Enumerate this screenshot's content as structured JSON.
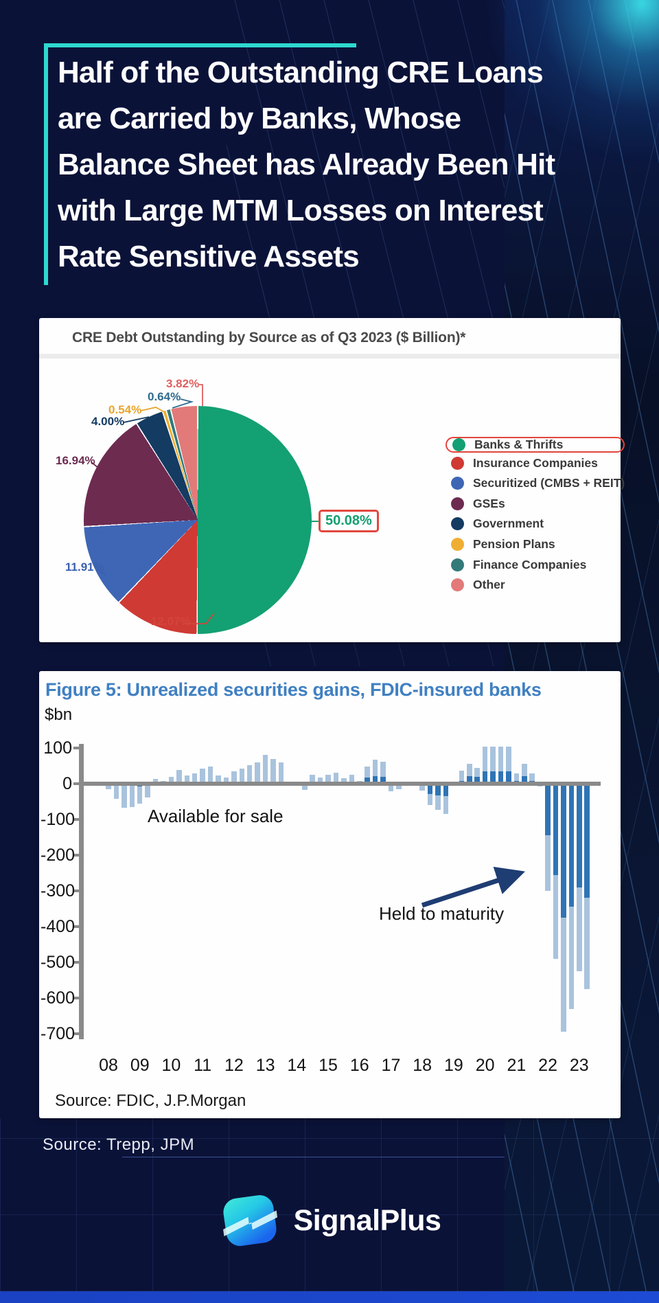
{
  "header": {
    "title_lines": [
      "Half of the Outstanding CRE Loans",
      "are Carried by Banks, Whose",
      "Balance Sheet has Already Been Hit",
      "with Large MTM Losses on Interest",
      "Rate Sensitive Assets"
    ]
  },
  "chart_data": [
    {
      "type": "pie",
      "title": "CRE Debt Outstanding by Source as of Q3 2023 ($ Billion)*",
      "start_angle_deg": 0,
      "direction": "clockwise",
      "legend_position": "right",
      "slices": [
        {
          "label": "Banks & Thrifts",
          "pct": 50.08,
          "color": "#13a072",
          "label_color": "#13a072",
          "callout": "50.08%",
          "boxed": true
        },
        {
          "label": "Insurance Companies",
          "pct": 12.07,
          "color": "#cf3a34",
          "label_color": "#d2453d",
          "callout": "12.07%",
          "boxed": false
        },
        {
          "label": "Securitized (CMBS + REIT)",
          "pct": 11.91,
          "color": "#3f66b5",
          "label_color": "#3a5fae",
          "callout": "11.91%",
          "boxed": false
        },
        {
          "label": "GSEs",
          "pct": 16.94,
          "color": "#6d2b50",
          "label_color": "#6d2b50",
          "callout": "16.94%",
          "boxed": false
        },
        {
          "label": "Government",
          "pct": 4.0,
          "color": "#143b62",
          "label_color": "#143b62",
          "callout": "4.00%",
          "boxed": false
        },
        {
          "label": "Pension Plans",
          "pct": 0.54,
          "color": "#efae32",
          "label_color": "#e8a52e",
          "callout": "0.54%",
          "boxed": false
        },
        {
          "label": "Finance Companies",
          "pct": 0.64,
          "color": "#337a7a",
          "label_color": "#2e6b8d",
          "callout": "0.64%",
          "boxed": false
        },
        {
          "label": "Other",
          "pct": 3.82,
          "color": "#e27a7a",
          "label_color": "#e05f5f",
          "callout": "3.82%",
          "boxed": false
        }
      ]
    },
    {
      "type": "bar",
      "title": "Figure 5: Unrealized securities gains, FDIC-insured banks",
      "ylabel": "$bn",
      "ylim": [
        -700,
        100
      ],
      "yticks": [
        100,
        0,
        -100,
        -200,
        -300,
        -400,
        -500,
        -600,
        -700
      ],
      "x_years": [
        "08",
        "09",
        "10",
        "11",
        "12",
        "13",
        "14",
        "15",
        "16",
        "17",
        "18",
        "19",
        "20",
        "21",
        "22",
        "23"
      ],
      "frequency": "quarterly",
      "x_start": "2008Q1",
      "x_end": "2023Q2",
      "bars_clipped_above": 100,
      "stacked": true,
      "series": [
        {
          "name": "Held to maturity",
          "color": "#2f74b5",
          "values": [
            0,
            0,
            0,
            0,
            -8,
            -6,
            0,
            0,
            0,
            0,
            0,
            0,
            0,
            0,
            0,
            0,
            0,
            0,
            0,
            0,
            2,
            2,
            2,
            0,
            0,
            0,
            0,
            0,
            3,
            5,
            4,
            5,
            3,
            18,
            22,
            19,
            0,
            0,
            0,
            0,
            0,
            -29,
            -32,
            -35,
            0,
            8,
            22,
            19,
            35,
            35,
            35,
            35,
            8,
            22,
            8,
            0,
            -145,
            -255,
            -375,
            -345,
            -290,
            -320
          ]
        },
        {
          "name": "Available for sale",
          "color": "#a9c3dd",
          "values": [
            -15,
            -42,
            -67,
            -66,
            -47,
            -32,
            14,
            7,
            20,
            38,
            24,
            28,
            43,
            48,
            23,
            18,
            35,
            43,
            52,
            60,
            78,
            68,
            58,
            4,
            2,
            -18,
            25,
            17,
            22,
            25,
            12,
            20,
            5,
            30,
            46,
            42,
            -21,
            -16,
            -3,
            -3,
            -19,
            -31,
            -41,
            -50,
            2,
            29,
            33,
            26,
            68,
            68,
            68,
            68,
            21,
            33,
            20,
            -8,
            -155,
            -235,
            -320,
            -285,
            -235,
            -255
          ]
        }
      ],
      "annotations": [
        "Available for sale",
        "Held to maturity"
      ],
      "source": "Source: FDIC, J.P.Morgan"
    }
  ],
  "footer": {
    "source": "Source: Trepp, JPM",
    "brand": "SignalPlus"
  },
  "colors": {
    "background": "#0b1238",
    "accent_teal": "#2ed8cf",
    "bottom_strip": "#1d4bd4",
    "figure_title_blue": "#4080c2",
    "afs_bar": "#a9c3dd",
    "htm_bar": "#2f74b5"
  }
}
